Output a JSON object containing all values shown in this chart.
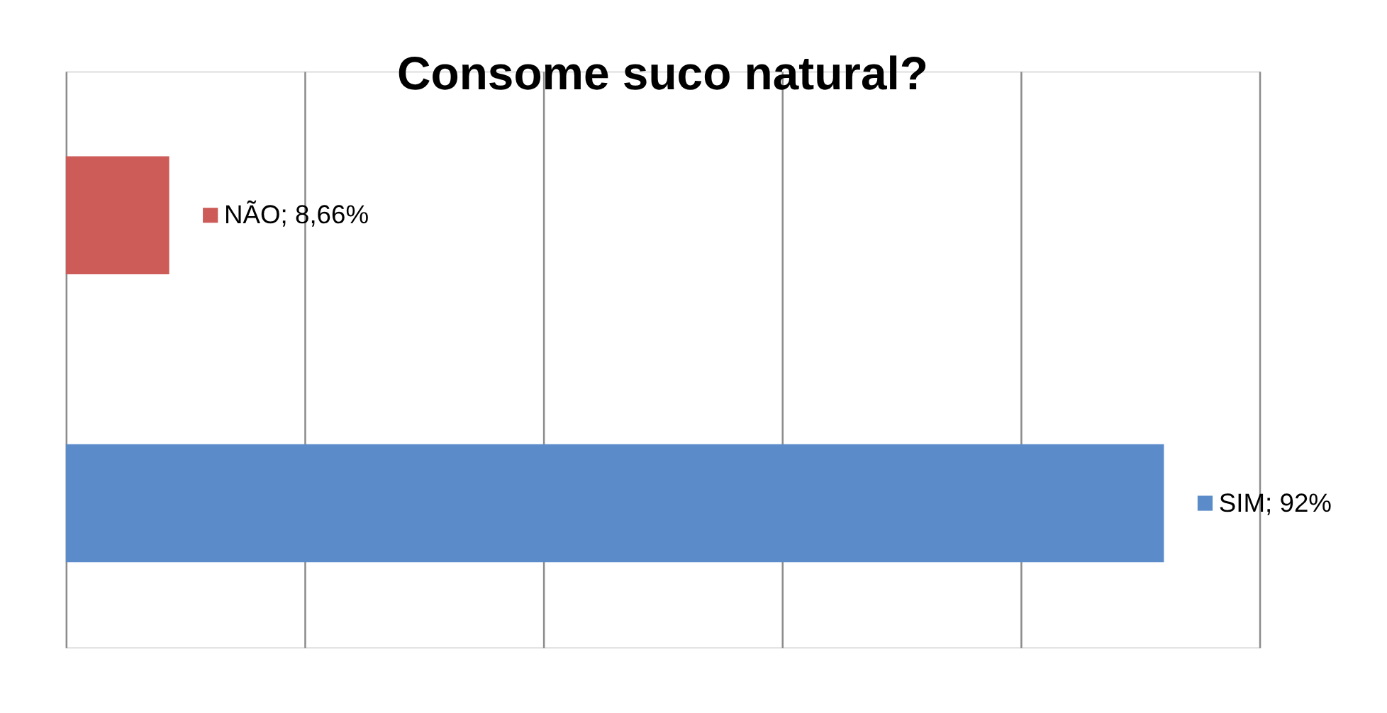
{
  "chart_data": {
    "type": "bar",
    "orientation": "horizontal",
    "title": "Consome suco natural?",
    "categories": [
      null,
      null
    ],
    "values": [
      8.66,
      92
    ],
    "colors": [
      "#cd5b57",
      "#5b8bc9"
    ],
    "value_labels": [
      "NÃO; 8,66%",
      "SIM; 92%"
    ],
    "xlim": [
      0,
      100
    ],
    "xticks": [
      0,
      20,
      40,
      60,
      80,
      100
    ],
    "grid": "x",
    "tick_labels": false
  }
}
